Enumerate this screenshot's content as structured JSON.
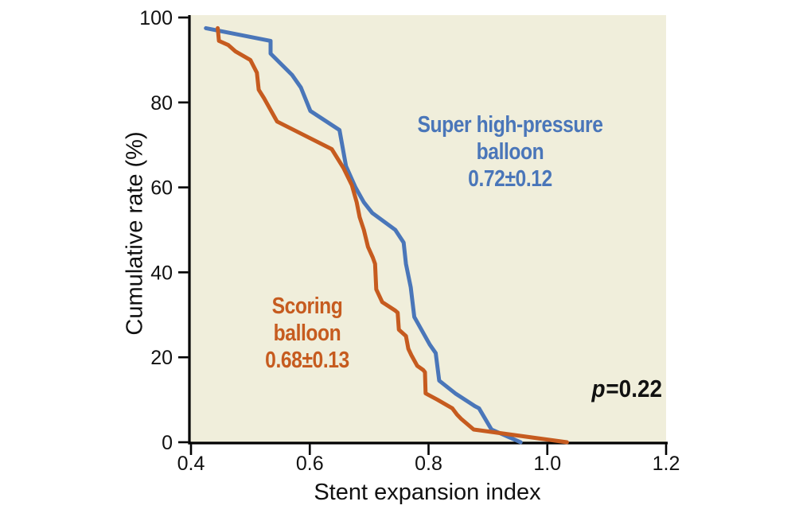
{
  "figure": {
    "background": "#ffffff",
    "plot_background": "#f0eedb",
    "axis_color": "#000000",
    "text_color": "#111111"
  },
  "chart_data": {
    "type": "line",
    "title": "",
    "xlabel": "Stent expansion index",
    "ylabel": "Cumulative rate (%)",
    "xlim": [
      0.4,
      1.2
    ],
    "ylim": [
      0,
      100
    ],
    "x_ticks": [
      0.4,
      0.6,
      0.8,
      1.0,
      1.2
    ],
    "x_tick_labels": [
      "0.4",
      "0.6",
      "0.8",
      "1.0",
      "1.2"
    ],
    "y_ticks": [
      0,
      20,
      40,
      60,
      80,
      100
    ],
    "y_tick_labels": [
      "0",
      "20",
      "40",
      "60",
      "80",
      "100"
    ],
    "grid": false,
    "legend_position": "inside-plot annotations",
    "annotation": {
      "label": "p",
      "text": "=0.22"
    },
    "series": [
      {
        "name": "Super high-pressure balloon",
        "legend_lines": [
          "Super high-pressure",
          "balloon",
          "0.72±0.12"
        ],
        "mean_sd": "0.72±0.12",
        "color": "#4a76b9",
        "points": [
          [
            0.425,
            97.5
          ],
          [
            0.534,
            94.5
          ],
          [
            0.534,
            91.5
          ],
          [
            0.57,
            86.5
          ],
          [
            0.585,
            83.5
          ],
          [
            0.601,
            78
          ],
          [
            0.65,
            73.5
          ],
          [
            0.661,
            65
          ],
          [
            0.677,
            60
          ],
          [
            0.691,
            56.5
          ],
          [
            0.705,
            54
          ],
          [
            0.744,
            50
          ],
          [
            0.758,
            47
          ],
          [
            0.762,
            42
          ],
          [
            0.77,
            36.5
          ],
          [
            0.776,
            29.5
          ],
          [
            0.78,
            28.5
          ],
          [
            0.802,
            23
          ],
          [
            0.812,
            21
          ],
          [
            0.818,
            14.5
          ],
          [
            0.845,
            11.5
          ],
          [
            0.878,
            8.5
          ],
          [
            0.885,
            8
          ],
          [
            0.906,
            3
          ],
          [
            0.955,
            0
          ]
        ]
      },
      {
        "name": "Scoring balloon",
        "legend_lines": [
          "Scoring",
          "balloon",
          "0.68±0.13"
        ],
        "mean_sd": "0.68±0.13",
        "color": "#c65b1f",
        "points": [
          [
            0.445,
            97.5
          ],
          [
            0.447,
            94.5
          ],
          [
            0.463,
            93.5
          ],
          [
            0.475,
            92
          ],
          [
            0.5,
            90
          ],
          [
            0.511,
            87
          ],
          [
            0.514,
            83
          ],
          [
            0.523,
            81
          ],
          [
            0.541,
            76.5
          ],
          [
            0.545,
            75.5
          ],
          [
            0.637,
            69
          ],
          [
            0.657,
            64.5
          ],
          [
            0.671,
            60.5
          ],
          [
            0.679,
            56.5
          ],
          [
            0.684,
            53
          ],
          [
            0.691,
            50
          ],
          [
            0.698,
            46
          ],
          [
            0.706,
            43.5
          ],
          [
            0.71,
            42
          ],
          [
            0.712,
            36
          ],
          [
            0.722,
            33
          ],
          [
            0.744,
            31
          ],
          [
            0.748,
            30.5
          ],
          [
            0.75,
            26.5
          ],
          [
            0.762,
            25
          ],
          [
            0.766,
            22
          ],
          [
            0.771,
            20.5
          ],
          [
            0.781,
            18
          ],
          [
            0.791,
            17
          ],
          [
            0.794,
            16.5
          ],
          [
            0.795,
            11.5
          ],
          [
            0.815,
            10
          ],
          [
            0.84,
            8
          ],
          [
            0.848,
            6.5
          ],
          [
            0.855,
            5.5
          ],
          [
            0.876,
            3
          ],
          [
            1.033,
            0
          ]
        ]
      }
    ]
  }
}
